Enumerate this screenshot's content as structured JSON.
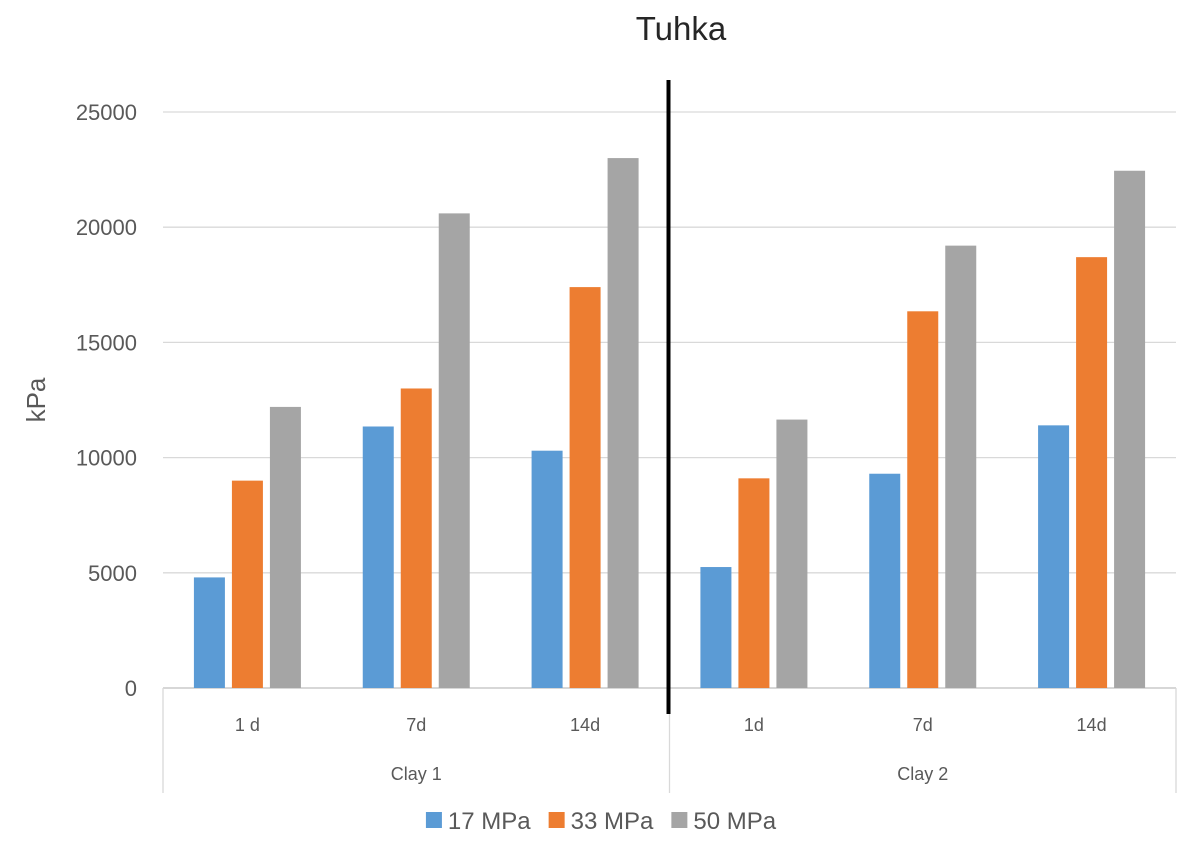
{
  "chart_data": {
    "type": "bar",
    "title": "Tuhka",
    "xlabel": "",
    "ylabel": "kPa",
    "ylim": [
      0,
      25000
    ],
    "yticks": [
      0,
      5000,
      10000,
      15000,
      20000,
      25000
    ],
    "grid": true,
    "legend_position": "bottom",
    "groups": [
      {
        "label": "Clay 1",
        "categories": [
          "1 d",
          "7d",
          "14d"
        ]
      },
      {
        "label": "Clay 2",
        "categories": [
          "1d",
          "7d",
          "14d"
        ]
      }
    ],
    "series": [
      {
        "name": "17 MPa",
        "color": "#5B9BD5",
        "values": [
          4800,
          11350,
          10300,
          5250,
          9300,
          11400
        ]
      },
      {
        "name": "33 MPa",
        "color": "#ED7D31",
        "values": [
          9000,
          13000,
          17400,
          9100,
          16350,
          18700
        ]
      },
      {
        "name": "50 MPa",
        "color": "#A5A5A5",
        "values": [
          12200,
          20600,
          23000,
          11650,
          19200,
          22450
        ]
      }
    ],
    "separator": {
      "after_group": 0,
      "color": "#000000"
    }
  }
}
